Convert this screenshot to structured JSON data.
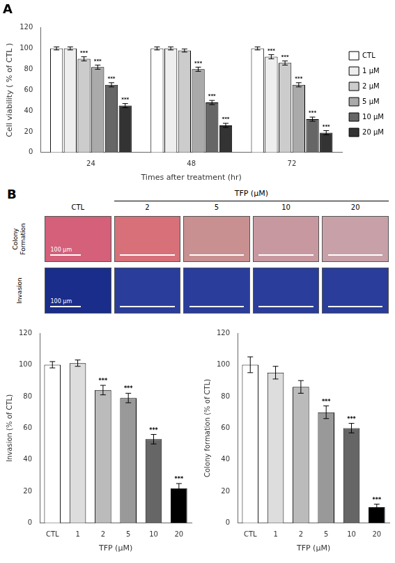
{
  "chart_data": [
    {
      "type": "bar",
      "title": "A",
      "xlabel": "Times after treatment (hr)",
      "ylabel": "Cell viability ( % of CTL )",
      "categories": [
        "24",
        "48",
        "72"
      ],
      "series": [
        {
          "name": "CTL",
          "color": "#ffffff",
          "values": [
            100,
            100,
            100
          ],
          "errors": [
            1.5,
            1.5,
            1.5
          ],
          "sig_labels": [
            null,
            null,
            null
          ]
        },
        {
          "name": "1 μM",
          "color": "#eeeeee",
          "values": [
            100,
            100,
            92
          ],
          "errors": [
            1.5,
            1.5,
            2
          ],
          "sig_labels": [
            null,
            null,
            "***"
          ]
        },
        {
          "name": "2 μM",
          "color": "#cccccc",
          "values": [
            90,
            98,
            86
          ],
          "errors": [
            2,
            1.5,
            2
          ],
          "sig_labels": [
            "***",
            null,
            "***"
          ]
        },
        {
          "name": "5 μM",
          "color": "#aaaaaa",
          "values": [
            82,
            80,
            65
          ],
          "errors": [
            2,
            2,
            2
          ],
          "sig_labels": [
            "***",
            "***",
            "***"
          ]
        },
        {
          "name": "10 μM",
          "color": "#666666",
          "values": [
            65,
            48,
            32
          ],
          "errors": [
            2,
            2,
            2
          ],
          "sig_labels": [
            "***",
            "***",
            "***"
          ]
        },
        {
          "name": "20 μM",
          "color": "#333333",
          "values": [
            45,
            26,
            19
          ],
          "errors": [
            2,
            2,
            2
          ],
          "sig_labels": [
            "***",
            "***",
            "***"
          ]
        }
      ],
      "ylim": [
        0,
        120
      ],
      "yticks": [
        0,
        20,
        40,
        60,
        80,
        100,
        120
      ],
      "grid": false,
      "legend": "right"
    },
    {
      "type": "image_grid",
      "title": "B",
      "subtitle": "TFP (μM)",
      "categories": [
        "CTL",
        "2",
        "5",
        "10",
        "20"
      ],
      "series": [
        {
          "name": "Colony\nFormation",
          "colors": [
            "#d4607a",
            "#d8707a",
            "#c89090",
            "#c898a0",
            "#c8a0a8"
          ]
        },
        {
          "name": "Invasion",
          "colors": [
            "#1a2d8a",
            "#2a3d9a",
            "#2a3d9a",
            "#2a3d9a",
            "#2a3d9a"
          ]
        }
      ],
      "annotations": [
        "100 μm"
      ]
    },
    {
      "type": "bar",
      "xlabel": "TFP (μM)",
      "ylabel": "Invasion (% of CTL)",
      "categories": [
        "CTL",
        "1",
        "2",
        "5",
        "10",
        "20"
      ],
      "values": [
        100,
        101,
        84,
        79,
        53,
        22
      ],
      "errors": [
        2,
        2,
        3,
        3,
        3,
        3
      ],
      "sig_labels": [
        null,
        null,
        "***",
        "***",
        "***",
        "***"
      ],
      "colors": [
        "#ffffff",
        "#dddddd",
        "#bbbbbb",
        "#999999",
        "#666666",
        "#000000"
      ],
      "ylim": [
        0,
        120
      ],
      "yticks": [
        0,
        20,
        40,
        60,
        80,
        100,
        120
      ],
      "grid": false
    },
    {
      "type": "bar",
      "xlabel": "TFP (μM)",
      "ylabel": "Colony formation (% of CTL)",
      "categories": [
        "CTL",
        "1",
        "2",
        "5",
        "10",
        "20"
      ],
      "values": [
        100,
        95,
        86,
        70,
        60,
        10
      ],
      "errors": [
        5,
        4,
        4,
        4,
        3,
        2
      ],
      "sig_labels": [
        null,
        null,
        null,
        "***",
        "***",
        "***"
      ],
      "colors": [
        "#ffffff",
        "#dddddd",
        "#bbbbbb",
        "#999999",
        "#666666",
        "#000000"
      ],
      "ylim": [
        0,
        120
      ],
      "yticks": [
        0,
        20,
        40,
        60,
        80,
        100,
        120
      ],
      "grid": false
    }
  ]
}
